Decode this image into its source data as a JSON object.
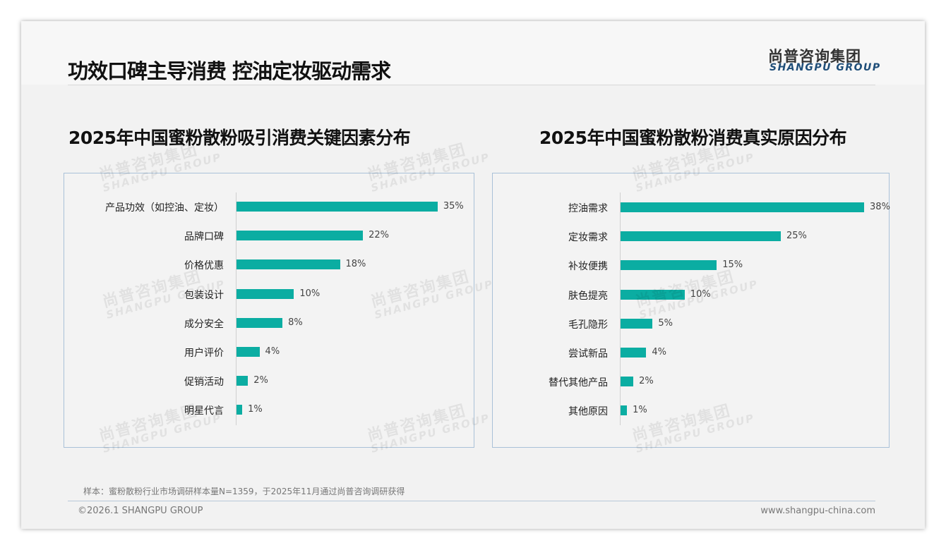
{
  "header": {
    "title": "功效口碑主导消费 控油定妆驱动需求",
    "logo_cn": "尚普咨询集团",
    "logo_en": "SHANGPU GROUP"
  },
  "chart_data": [
    {
      "type": "bar",
      "orientation": "horizontal",
      "title": "2025年中国蜜粉散粉吸引消费关键因素分布",
      "categories": [
        "产品功效（如控油、定妆）",
        "品牌口碑",
        "价格优惠",
        "包装设计",
        "成分安全",
        "用户评价",
        "促销活动",
        "明星代言"
      ],
      "values": [
        35,
        22,
        18,
        10,
        8,
        4,
        2,
        1
      ],
      "unit": "%",
      "xlim": [
        0,
        40
      ],
      "color": "#0badA2"
    },
    {
      "type": "bar",
      "orientation": "horizontal",
      "title": "2025年中国蜜粉散粉消费真实原因分布",
      "categories": [
        "控油需求",
        "定妆需求",
        "补妆便携",
        "肤色提亮",
        "毛孔隐形",
        "尝试新品",
        "替代其他产品",
        "其他原因"
      ],
      "values": [
        38,
        25,
        15,
        10,
        5,
        4,
        2,
        1
      ],
      "unit": "%",
      "xlim": [
        0,
        40
      ],
      "color": "#0badA2"
    }
  ],
  "footer": {
    "note": "样本：蜜粉散粉行业市场调研样本量N=1359，于2025年11月通过尚普咨询调研获得",
    "copyright": "©2026.1 SHANGPU GROUP",
    "website": "www.shangpu-china.com"
  }
}
